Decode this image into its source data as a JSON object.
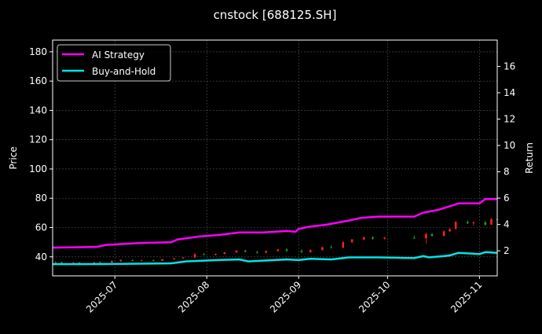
{
  "chart_data": {
    "type": "candlestick+line",
    "title": "cnstock [688125.SH]",
    "ylabel_left": "Price",
    "ylabel_right": "Return",
    "xlim": [
      "2025-06-10",
      "2025-11-07"
    ],
    "ylim_left": [
      27,
      188
    ],
    "ylim_right": [
      0.1,
      18
    ],
    "x_ticks": [
      "2025-07",
      "2025-08",
      "2025-09",
      "2025-10",
      "2025-11"
    ],
    "x_tick_dates": [
      "2025-07-01",
      "2025-08-01",
      "2025-09-01",
      "2025-10-01",
      "2025-11-01"
    ],
    "y_ticks_left": [
      40,
      60,
      80,
      100,
      120,
      140,
      160,
      180
    ],
    "y_ticks_right": [
      2,
      4,
      6,
      8,
      10,
      12,
      14,
      16
    ],
    "grid": true,
    "legend_position": "top-left",
    "colors": {
      "up": "#ff2020",
      "down": "#1fa31f",
      "strategy": "#ff00ff",
      "buy_hold": "#00e5e5",
      "background": "#000000"
    },
    "candles": [
      [
        "2025-06-11",
        36,
        37,
        35.5,
        36.3
      ],
      [
        "2025-06-13",
        36.2,
        36.8,
        35.4,
        35.7
      ],
      [
        "2025-06-17",
        35.8,
        36.5,
        35.2,
        36
      ],
      [
        "2025-06-19",
        36,
        36.6,
        35,
        35.4
      ],
      [
        "2025-06-24",
        35.5,
        36.6,
        35.3,
        36.3
      ],
      [
        "2025-06-26",
        36.3,
        37,
        35.8,
        36
      ],
      [
        "2025-06-30",
        36,
        37.5,
        35.8,
        37.2
      ],
      [
        "2025-07-03",
        37,
        38.3,
        36.7,
        37.9
      ],
      [
        "2025-07-07",
        37.8,
        38.5,
        37,
        37.3
      ],
      [
        "2025-07-10",
        37.3,
        37.9,
        36.8,
        37.6
      ],
      [
        "2025-07-14",
        37.6,
        38.2,
        37,
        37.2
      ],
      [
        "2025-07-17",
        37.2,
        38.6,
        37,
        38.3
      ],
      [
        "2025-07-21",
        38.3,
        39.2,
        38,
        39
      ],
      [
        "2025-07-24",
        39,
        40,
        38.6,
        39.5
      ],
      [
        "2025-07-28",
        39.5,
        42.5,
        39.3,
        41.8
      ],
      [
        "2025-07-31",
        41.8,
        42.6,
        41,
        41.4
      ],
      [
        "2025-08-04",
        41.4,
        42.3,
        40.8,
        42
      ],
      [
        "2025-08-07",
        42,
        43.3,
        41.7,
        43
      ],
      [
        "2025-08-11",
        43,
        44.6,
        42.6,
        44.2
      ],
      [
        "2025-08-14",
        44.2,
        45,
        43,
        43.4
      ],
      [
        "2025-08-18",
        43.4,
        44,
        42.2,
        42.8
      ],
      [
        "2025-08-21",
        42.8,
        44.3,
        42.5,
        44
      ],
      [
        "2025-08-25",
        44,
        45.5,
        43.6,
        45
      ],
      [
        "2025-08-28",
        45,
        45.8,
        43.6,
        44
      ],
      [
        "2025-09-02",
        44,
        45.3,
        42.5,
        43.2
      ],
      [
        "2025-09-05",
        43.2,
        45,
        42.8,
        44.6
      ],
      [
        "2025-09-09",
        44.6,
        47,
        44.2,
        46.5
      ],
      [
        "2025-09-12",
        46.5,
        48,
        45.8,
        46.2
      ],
      [
        "2025-09-16",
        46.2,
        50.5,
        46,
        50
      ],
      [
        "2025-09-19",
        50,
        52.3,
        49.2,
        51.8
      ],
      [
        "2025-09-23",
        51.8,
        54,
        51.2,
        53.3
      ],
      [
        "2025-09-26",
        53.3,
        54.2,
        51.6,
        52.4
      ],
      [
        "2025-09-30",
        52.4,
        53.6,
        51.8,
        53.1
      ],
      [
        "2025-10-10",
        53,
        54.6,
        52.2,
        52.6
      ],
      [
        "2025-10-14",
        52.6,
        56.5,
        49,
        55.5
      ],
      [
        "2025-10-16",
        55.5,
        56.3,
        53.8,
        54.3
      ],
      [
        "2025-10-20",
        54.3,
        58,
        54,
        57.4
      ],
      [
        "2025-10-22",
        57.4,
        59.5,
        57,
        59
      ],
      [
        "2025-10-24",
        59,
        64.5,
        58.6,
        63.8
      ],
      [
        "2025-10-28",
        63.8,
        65,
        62.4,
        62.9
      ],
      [
        "2025-10-30",
        62.9,
        64,
        61.2,
        63.5
      ],
      [
        "2025-11-03",
        63.5,
        64.5,
        61,
        62
      ],
      [
        "2025-11-05",
        62,
        66.5,
        61.8,
        65.7
      ],
      [
        "2025-11-07",
        65.7,
        66.5,
        64.8,
        65.3
      ]
    ],
    "series": [
      {
        "name": "AI Strategy",
        "axis": "right",
        "points": [
          [
            "2025-06-10",
            2.24
          ],
          [
            "2025-06-25",
            2.3
          ],
          [
            "2025-06-28",
            2.45
          ],
          [
            "2025-07-10",
            2.6
          ],
          [
            "2025-07-20",
            2.65
          ],
          [
            "2025-07-22",
            2.85
          ],
          [
            "2025-07-30",
            3.1
          ],
          [
            "2025-08-05",
            3.2
          ],
          [
            "2025-08-12",
            3.4
          ],
          [
            "2025-08-20",
            3.4
          ],
          [
            "2025-08-28",
            3.5
          ],
          [
            "2025-08-31",
            3.45
          ],
          [
            "2025-09-01",
            3.67
          ],
          [
            "2025-09-05",
            3.85
          ],
          [
            "2025-09-10",
            3.97
          ],
          [
            "2025-09-18",
            4.3
          ],
          [
            "2025-09-22",
            4.5
          ],
          [
            "2025-09-28",
            4.6
          ],
          [
            "2025-10-10",
            4.6
          ],
          [
            "2025-10-13",
            4.9
          ],
          [
            "2025-10-18",
            5.1
          ],
          [
            "2025-10-25",
            5.6
          ],
          [
            "2025-11-01",
            5.6
          ],
          [
            "2025-11-03",
            5.93
          ],
          [
            "2025-11-07",
            5.93
          ]
        ]
      },
      {
        "name": "Buy-and-Hold",
        "axis": "right",
        "points": [
          [
            "2025-06-10",
            0.99
          ],
          [
            "2025-06-30",
            1.0
          ],
          [
            "2025-07-20",
            1.05
          ],
          [
            "2025-07-25",
            1.2
          ],
          [
            "2025-08-05",
            1.3
          ],
          [
            "2025-08-12",
            1.35
          ],
          [
            "2025-08-15",
            1.2
          ],
          [
            "2025-08-28",
            1.35
          ],
          [
            "2025-09-01",
            1.3
          ],
          [
            "2025-09-05",
            1.4
          ],
          [
            "2025-09-12",
            1.35
          ],
          [
            "2025-09-18",
            1.5
          ],
          [
            "2025-09-28",
            1.5
          ],
          [
            "2025-10-10",
            1.45
          ],
          [
            "2025-10-13",
            1.6
          ],
          [
            "2025-10-15",
            1.5
          ],
          [
            "2025-10-20",
            1.6
          ],
          [
            "2025-10-22",
            1.65
          ],
          [
            "2025-10-25",
            1.85
          ],
          [
            "2025-11-01",
            1.75
          ],
          [
            "2025-11-03",
            1.9
          ],
          [
            "2025-11-07",
            1.85
          ]
        ]
      }
    ]
  }
}
